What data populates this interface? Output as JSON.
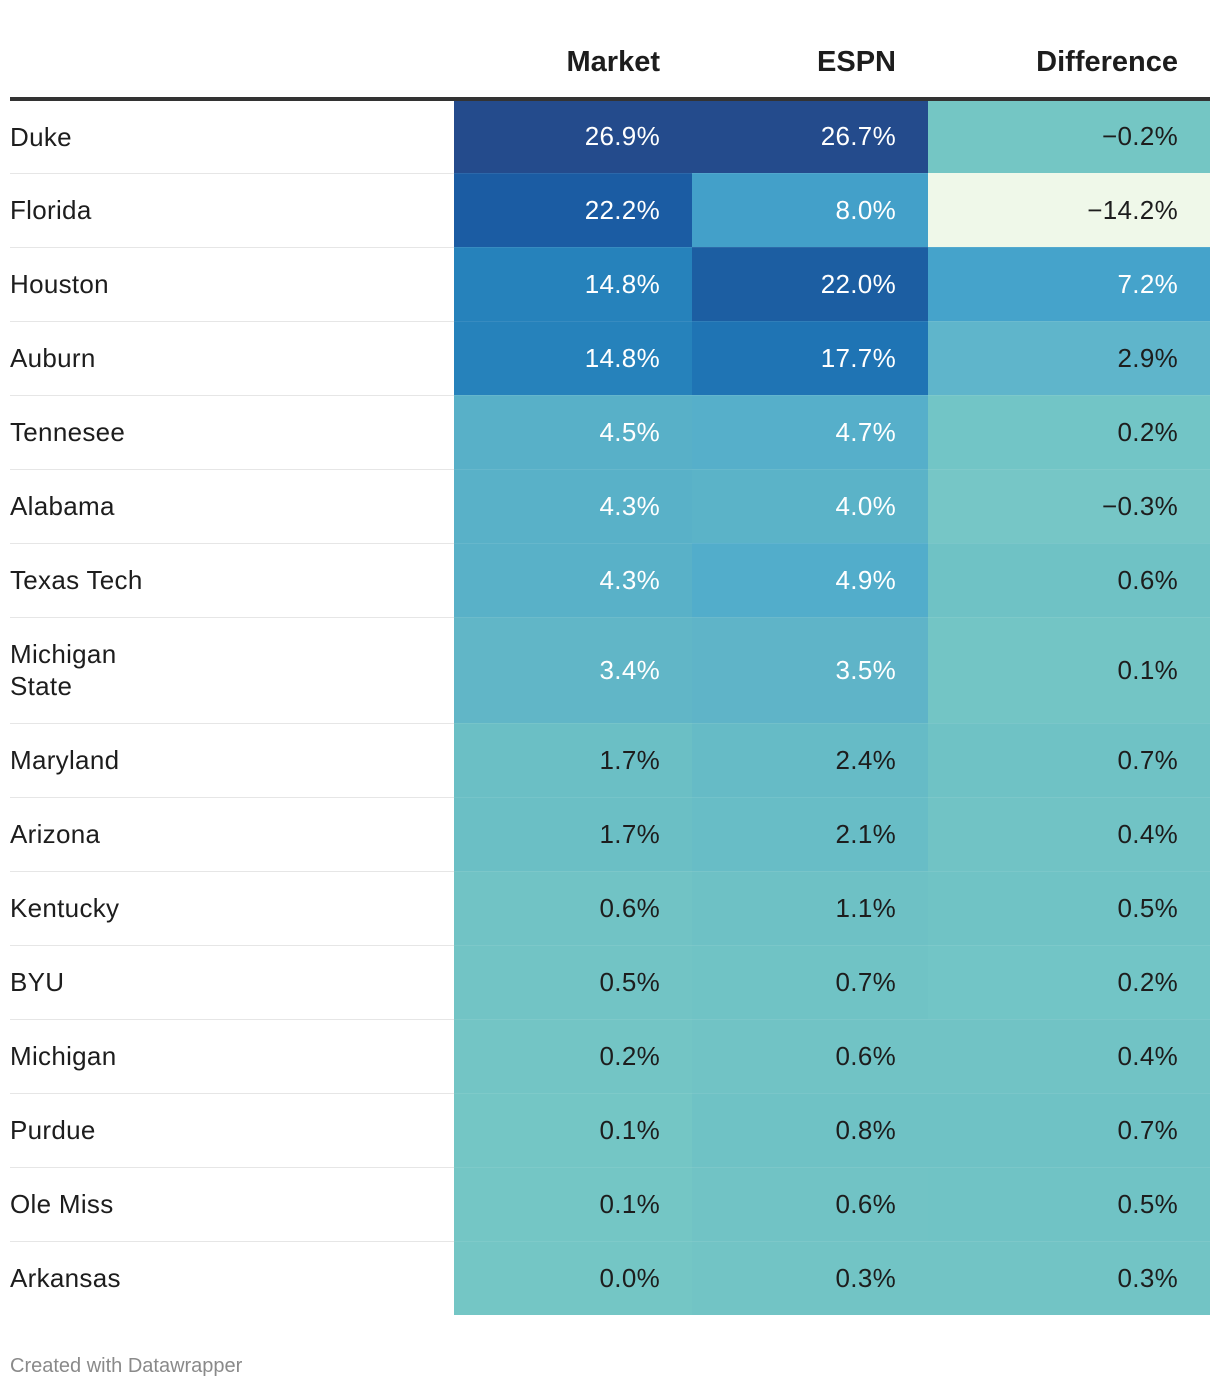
{
  "header": {
    "team": "",
    "market": "Market",
    "espn": "ESPN",
    "difference": "Difference"
  },
  "chart_data": {
    "type": "table",
    "columns": [
      "Market",
      "ESPN",
      "Difference"
    ],
    "rows": [
      {
        "team": "Duke",
        "market": "26.9%",
        "espn": "26.7%",
        "difference": "−0.2%",
        "market_value": 26.9,
        "espn_value": 26.7,
        "difference_value": -0.2,
        "colors": {
          "market": "#244b8c",
          "espn": "#244b8c",
          "difference": "#74c6c4"
        },
        "text": {
          "market": "light",
          "espn": "light",
          "difference": "dark"
        }
      },
      {
        "team": "Florida",
        "market": "22.2%",
        "espn": "8.0%",
        "difference": "−14.2%",
        "market_value": 22.2,
        "espn_value": 8.0,
        "difference_value": -14.2,
        "colors": {
          "market": "#1b5ca3",
          "espn": "#43a0c9",
          "difference": "#eff8e9"
        },
        "text": {
          "market": "light",
          "espn": "light",
          "difference": "dark"
        }
      },
      {
        "team": "Houston",
        "market": "14.8%",
        "espn": "22.0%",
        "difference": "7.2%",
        "market_value": 14.8,
        "espn_value": 22.0,
        "difference_value": 7.2,
        "colors": {
          "market": "#2682bb",
          "espn": "#1c5ea2",
          "difference": "#45a3cb"
        },
        "text": {
          "market": "light",
          "espn": "light",
          "difference": "light"
        }
      },
      {
        "team": "Auburn",
        "market": "14.8%",
        "espn": "17.7%",
        "difference": "2.9%",
        "market_value": 14.8,
        "espn_value": 17.7,
        "difference_value": 2.9,
        "colors": {
          "market": "#2682bb",
          "espn": "#1f74b4",
          "difference": "#5fb5cb"
        },
        "text": {
          "market": "light",
          "espn": "light",
          "difference": "dark"
        }
      },
      {
        "team": "Tennesee",
        "market": "4.5%",
        "espn": "4.7%",
        "difference": "0.2%",
        "market_value": 4.5,
        "espn_value": 4.7,
        "difference_value": 0.2,
        "colors": {
          "market": "#58b0c8",
          "espn": "#56afca",
          "difference": "#72c5c6"
        },
        "text": {
          "market": "light",
          "espn": "light",
          "difference": "dark"
        }
      },
      {
        "team": "Alabama",
        "market": "4.3%",
        "espn": "4.0%",
        "difference": "−0.3%",
        "market_value": 4.3,
        "espn_value": 4.0,
        "difference_value": -0.3,
        "colors": {
          "market": "#59b1c8",
          "espn": "#5bb3c8",
          "difference": "#76c6c6"
        },
        "text": {
          "market": "light",
          "espn": "light",
          "difference": "dark"
        }
      },
      {
        "team": "Texas Tech",
        "market": "4.3%",
        "espn": "4.9%",
        "difference": "0.6%",
        "market_value": 4.3,
        "espn_value": 4.9,
        "difference_value": 0.6,
        "colors": {
          "market": "#59b1c8",
          "espn": "#52adcb",
          "difference": "#6fc2c5"
        },
        "text": {
          "market": "light",
          "espn": "light",
          "difference": "dark"
        }
      },
      {
        "team": "Michigan State",
        "market": "3.4%",
        "espn": "3.5%",
        "difference": "0.1%",
        "market_value": 3.4,
        "espn_value": 3.5,
        "difference_value": 0.1,
        "colors": {
          "market": "#61b6c7",
          "espn": "#5fb4c8",
          "difference": "#73c5c5"
        },
        "text": {
          "market": "light",
          "espn": "light",
          "difference": "dark"
        },
        "tall": true
      },
      {
        "team": "Maryland",
        "market": "1.7%",
        "espn": "2.4%",
        "difference": "0.7%",
        "market_value": 1.7,
        "espn_value": 2.4,
        "difference_value": 0.7,
        "colors": {
          "market": "#6bbfc5",
          "espn": "#66bbc6",
          "difference": "#6fc2c5"
        },
        "text": {
          "market": "dark",
          "espn": "dark",
          "difference": "dark"
        }
      },
      {
        "team": "Arizona",
        "market": "1.7%",
        "espn": "2.1%",
        "difference": "0.4%",
        "market_value": 1.7,
        "espn_value": 2.1,
        "difference_value": 0.4,
        "colors": {
          "market": "#6bbfc5",
          "espn": "#68bdc6",
          "difference": "#71c3c5"
        },
        "text": {
          "market": "dark",
          "espn": "dark",
          "difference": "dark"
        }
      },
      {
        "team": "Kentucky",
        "market": "0.6%",
        "espn": "1.1%",
        "difference": "0.5%",
        "market_value": 0.6,
        "espn_value": 1.1,
        "difference_value": 0.5,
        "colors": {
          "market": "#71c3c5",
          "espn": "#6ec1c5",
          "difference": "#70c3c5"
        },
        "text": {
          "market": "dark",
          "espn": "dark",
          "difference": "dark"
        }
      },
      {
        "team": "BYU",
        "market": "0.5%",
        "espn": "0.7%",
        "difference": "0.2%",
        "market_value": 0.5,
        "espn_value": 0.7,
        "difference_value": 0.2,
        "colors": {
          "market": "#72c4c5",
          "espn": "#70c3c5",
          "difference": "#72c5c6"
        },
        "text": {
          "market": "dark",
          "espn": "dark",
          "difference": "dark"
        }
      },
      {
        "team": "Michigan",
        "market": "0.2%",
        "espn": "0.6%",
        "difference": "0.4%",
        "market_value": 0.2,
        "espn_value": 0.6,
        "difference_value": 0.4,
        "colors": {
          "market": "#73c5c5",
          "espn": "#71c3c5",
          "difference": "#71c3c5"
        },
        "text": {
          "market": "dark",
          "espn": "dark",
          "difference": "dark"
        }
      },
      {
        "team": "Purdue",
        "market": "0.1%",
        "espn": "0.8%",
        "difference": "0.7%",
        "market_value": 0.1,
        "espn_value": 0.8,
        "difference_value": 0.7,
        "colors": {
          "market": "#74c6c5",
          "espn": "#6fc2c5",
          "difference": "#6fc2c5"
        },
        "text": {
          "market": "dark",
          "espn": "dark",
          "difference": "dark"
        }
      },
      {
        "team": "Ole Miss",
        "market": "0.1%",
        "espn": "0.6%",
        "difference": "0.5%",
        "market_value": 0.1,
        "espn_value": 0.6,
        "difference_value": 0.5,
        "colors": {
          "market": "#74c6c5",
          "espn": "#71c3c5",
          "difference": "#70c3c5"
        },
        "text": {
          "market": "dark",
          "espn": "dark",
          "difference": "dark"
        }
      },
      {
        "team": "Arkansas",
        "market": "0.0%",
        "espn": "0.3%",
        "difference": "0.3%",
        "market_value": 0.0,
        "espn_value": 0.3,
        "difference_value": 0.3,
        "colors": {
          "market": "#74c6c5",
          "espn": "#72c4c5",
          "difference": "#72c4c5"
        },
        "text": {
          "market": "dark",
          "espn": "dark",
          "difference": "dark"
        }
      }
    ]
  },
  "colors": {
    "light_text": "#ffffff",
    "dark_text": "#1d1d1d"
  },
  "footer": {
    "credit": "Created with Datawrapper"
  }
}
